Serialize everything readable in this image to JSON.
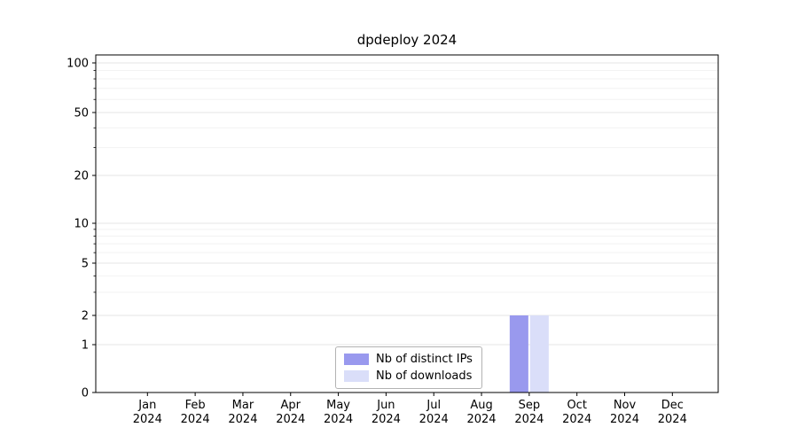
{
  "chart": {
    "title": "dpdeploy 2024"
  },
  "chart_data": {
    "type": "bar",
    "title": "dpdeploy 2024",
    "categories": [
      "Jan\n2024",
      "Feb\n2024",
      "Mar\n2024",
      "Apr\n2024",
      "May\n2024",
      "Jun\n2024",
      "Jul\n2024",
      "Aug\n2024",
      "Sep\n2024",
      "Oct\n2024",
      "Nov\n2024",
      "Dec\n2024"
    ],
    "series": [
      {
        "name": "Nb of distinct IPs",
        "color": "#9999ee",
        "values": [
          0,
          0,
          0,
          0,
          0,
          0,
          0,
          0,
          2,
          0,
          0,
          0
        ]
      },
      {
        "name": "Nb of downloads",
        "color": "#dadef9",
        "values": [
          0,
          0,
          0,
          0,
          0,
          0,
          0,
          0,
          2,
          0,
          0,
          0
        ]
      }
    ],
    "yscale": "symlog",
    "yticks": [
      0,
      1,
      2,
      5,
      10,
      20,
      50,
      100
    ],
    "ylim": [
      0,
      100
    ],
    "xlabel": "",
    "ylabel": "",
    "grid": true,
    "legend_position": "bottom-center"
  }
}
